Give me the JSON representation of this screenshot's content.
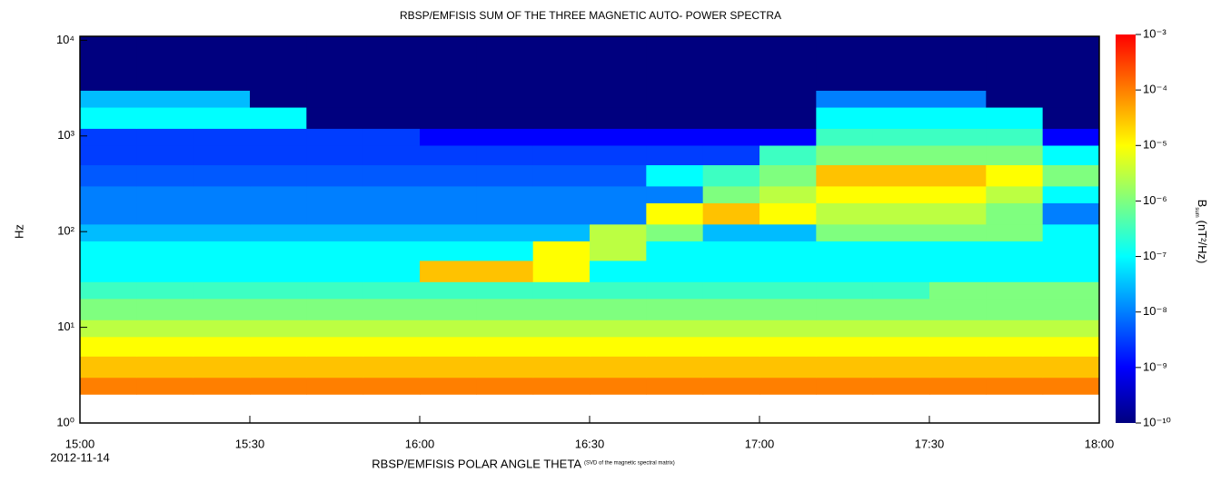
{
  "chart_data": {
    "type": "spectrogram",
    "title": "RBSP/EMFISIS  SUM OF THE THREE MAGNETIC AUTO- POWER SPECTRA",
    "y_label": "Hz",
    "x_label": "RBSP/EMFISIS  POLAR ANGLE THETA",
    "x_label_note": "(SVD of the magnetic spectral matrix)",
    "date": "2012-11-14",
    "colorbar_label": "B",
    "colorbar_label_sub": "sum",
    "colorbar_label_unit": "(nT²/Hz)",
    "xlim": [
      "15:00",
      "18:00"
    ],
    "xticks": [
      "15:00",
      "15:30",
      "16:00",
      "16:30",
      "17:00",
      "17:30",
      "18:00"
    ],
    "ylim": [
      1,
      11000
    ],
    "y_log": true,
    "yticks": [
      {
        "value": 1,
        "label": "10⁰"
      },
      {
        "value": 10,
        "label": "10¹"
      },
      {
        "value": 100,
        "label": "10²"
      },
      {
        "value": 1000,
        "label": "10³"
      },
      {
        "value": 10000,
        "label": "10⁴"
      }
    ],
    "clim": [
      1e-10,
      0.001
    ],
    "c_log": true,
    "cticks": [
      {
        "value": 0.001,
        "label": "10⁻³"
      },
      {
        "value": 0.0001,
        "label": "10⁻⁴"
      },
      {
        "value": 1e-05,
        "label": "10⁻⁵"
      },
      {
        "value": 1e-06,
        "label": "10⁻⁶"
      },
      {
        "value": 1e-07,
        "label": "10⁻⁷"
      },
      {
        "value": 1e-08,
        "label": "10⁻⁸"
      },
      {
        "value": 1e-09,
        "label": "10⁻⁹"
      },
      {
        "value": 1e-10,
        "label": "10⁻¹⁰"
      }
    ],
    "colormap": [
      "#00007f",
      "#0000ff",
      "#007fff",
      "#00ffff",
      "#7fff7f",
      "#ffff00",
      "#ff7f00",
      "#ff0000"
    ],
    "x_edges": [
      "15:00",
      "15:10",
      "15:20",
      "15:30",
      "15:40",
      "15:50",
      "16:00",
      "16:10",
      "16:20",
      "16:30",
      "16:40",
      "16:50",
      "17:00",
      "17:10",
      "17:20",
      "17:30",
      "17:40",
      "17:50",
      "18:00"
    ],
    "y_edges": [
      2,
      3,
      5,
      8,
      12,
      20,
      30,
      50,
      80,
      120,
      200,
      300,
      500,
      800,
      1200,
      2000,
      3000,
      5000,
      11000
    ],
    "z": [
      [
        0.0001,
        0.0001,
        0.0001,
        0.0001,
        0.0001,
        0.0001,
        0.0001,
        0.0001,
        0.0001,
        0.0001,
        0.0001,
        0.0001,
        0.0001,
        0.0001,
        0.0001,
        0.0001,
        0.0001,
        0.0001
      ],
      [
        3e-05,
        3e-05,
        3e-05,
        3e-05,
        3e-05,
        3e-05,
        3e-05,
        3e-05,
        3e-05,
        3e-05,
        3e-05,
        3e-05,
        3e-05,
        3e-05,
        3e-05,
        3e-05,
        3e-05,
        3e-05
      ],
      [
        1e-05,
        1e-05,
        1e-05,
        1e-05,
        1e-05,
        1e-05,
        1e-05,
        1e-05,
        1e-05,
        1e-05,
        1e-05,
        1e-05,
        1e-05,
        1e-05,
        1e-05,
        1e-05,
        1e-05,
        1e-05
      ],
      [
        3e-06,
        3e-06,
        3e-06,
        3e-06,
        3e-06,
        3e-06,
        3e-06,
        3e-06,
        3e-06,
        3e-06,
        3e-06,
        3e-06,
        3e-06,
        3e-06,
        3e-06,
        3e-06,
        3e-06,
        3e-06
      ],
      [
        1e-06,
        1e-06,
        1e-06,
        1e-06,
        1e-06,
        1e-06,
        1e-06,
        1e-06,
        1e-06,
        1e-06,
        1e-06,
        1e-06,
        1e-06,
        1e-06,
        1e-06,
        1e-06,
        1e-06,
        1e-06
      ],
      [
        3e-07,
        3e-07,
        3e-07,
        3e-07,
        3e-07,
        3e-07,
        3e-07,
        3e-07,
        3e-07,
        3e-07,
        3e-07,
        3e-07,
        3e-07,
        3e-07,
        3e-07,
        1e-06,
        1e-06,
        1e-06
      ],
      [
        1e-07,
        1e-07,
        1e-07,
        1e-07,
        1e-07,
        1e-07,
        3e-05,
        3e-05,
        1e-05,
        1e-07,
        1e-07,
        1e-07,
        1e-07,
        1e-07,
        1e-07,
        1e-07,
        1e-07,
        1e-07
      ],
      [
        1e-07,
        1e-07,
        1e-07,
        1e-07,
        1e-07,
        1e-07,
        1e-07,
        1e-07,
        1e-05,
        3e-06,
        1e-07,
        1e-07,
        1e-07,
        1e-07,
        1e-07,
        1e-07,
        1e-07,
        1e-07
      ],
      [
        3e-08,
        3e-08,
        3e-08,
        3e-08,
        3e-08,
        3e-08,
        3e-08,
        3e-08,
        3e-08,
        3e-06,
        1e-06,
        3e-08,
        3e-08,
        1e-06,
        1e-06,
        1e-06,
        1e-06,
        1e-07
      ],
      [
        1e-08,
        1e-08,
        1e-08,
        1e-08,
        1e-08,
        1e-08,
        1e-08,
        1e-08,
        1e-08,
        1e-08,
        1e-05,
        3e-05,
        1e-05,
        3e-06,
        3e-06,
        3e-06,
        1e-06,
        1e-08
      ],
      [
        1e-08,
        1e-08,
        1e-08,
        1e-08,
        1e-08,
        1e-08,
        1e-08,
        1e-08,
        1e-08,
        1e-08,
        1e-08,
        1e-06,
        3e-06,
        1e-05,
        1e-05,
        1e-05,
        3e-06,
        1e-07
      ],
      [
        5e-09,
        5e-09,
        5e-09,
        5e-09,
        5e-09,
        5e-09,
        5e-09,
        5e-09,
        5e-09,
        5e-09,
        1e-07,
        3e-07,
        1e-06,
        3e-05,
        3e-05,
        3e-05,
        1e-05,
        1e-06
      ],
      [
        3e-09,
        3e-09,
        3e-09,
        3e-09,
        3e-09,
        3e-09,
        3e-09,
        3e-09,
        3e-09,
        3e-09,
        3e-09,
        3e-09,
        3e-07,
        1e-06,
        1e-06,
        1e-06,
        1e-06,
        1e-07
      ],
      [
        3e-09,
        3e-09,
        3e-09,
        3e-09,
        3e-09,
        3e-09,
        1e-09,
        1e-09,
        1e-09,
        1e-09,
        1e-09,
        1e-09,
        1e-09,
        3e-07,
        3e-07,
        3e-07,
        3e-07,
        1e-09
      ],
      [
        1e-07,
        1e-07,
        1e-07,
        1e-07,
        1e-10,
        1e-10,
        1e-10,
        1e-10,
        1e-10,
        1e-10,
        1e-10,
        1e-10,
        1e-10,
        1e-07,
        1e-07,
        1e-07,
        1e-07,
        1e-10
      ],
      [
        3e-08,
        3e-08,
        3e-08,
        1e-10,
        1e-10,
        1e-10,
        1e-10,
        1e-10,
        1e-10,
        1e-10,
        1e-10,
        1e-10,
        1e-10,
        1e-08,
        1e-08,
        1e-08,
        1e-10,
        1e-10
      ],
      [
        1e-10,
        1e-10,
        1e-10,
        1e-10,
        1e-10,
        1e-10,
        1e-10,
        1e-10,
        1e-10,
        1e-10,
        1e-10,
        1e-10,
        1e-10,
        1e-10,
        1e-10,
        1e-10,
        1e-10,
        1e-10
      ],
      [
        1e-10,
        1e-10,
        1e-10,
        1e-10,
        1e-10,
        1e-10,
        1e-10,
        1e-10,
        1e-10,
        1e-10,
        1e-10,
        1e-10,
        1e-10,
        1e-10,
        1e-10,
        1e-10,
        1e-10,
        1e-10
      ]
    ]
  }
}
